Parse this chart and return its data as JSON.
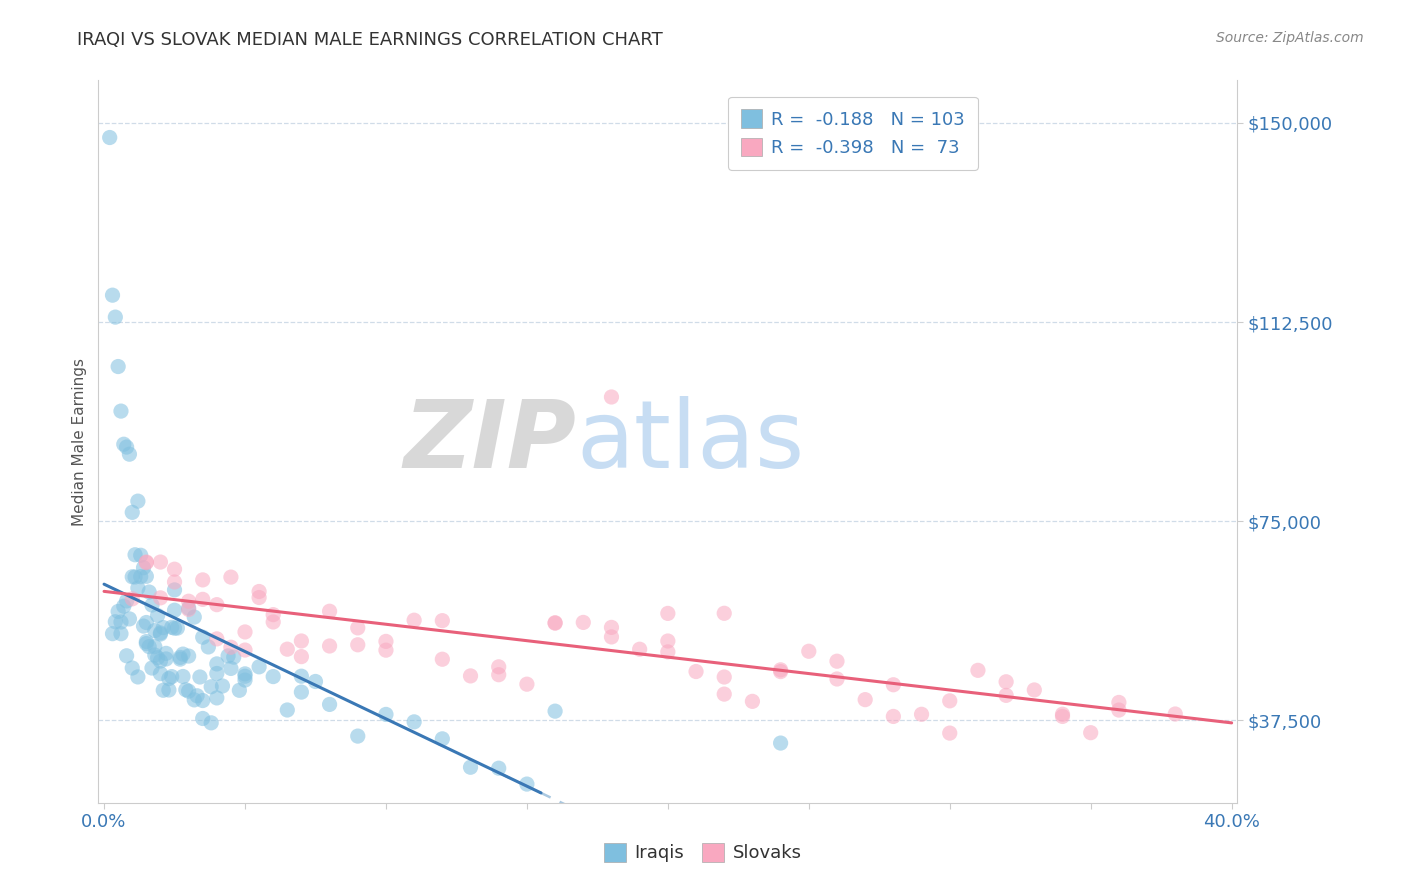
{
  "title": "IRAQI VS SLOVAK MEDIAN MALE EARNINGS CORRELATION CHART",
  "source_text": "Source: ZipAtlas.com",
  "ylabel": "Median Male Earnings",
  "xlim": [
    -0.002,
    0.402
  ],
  "ylim": [
    22000,
    158000
  ],
  "yticks": [
    37500,
    75000,
    112500,
    150000
  ],
  "ytick_labels": [
    "$37,500",
    "$75,000",
    "$112,500",
    "$150,000"
  ],
  "xtick_vals": [
    0.0,
    0.05,
    0.1,
    0.15,
    0.2,
    0.25,
    0.3,
    0.35,
    0.4
  ],
  "xtick_labels": [
    "0.0%",
    "",
    "",
    "",
    "",
    "",
    "",
    "",
    "40.0%"
  ],
  "iraqi_R": -0.188,
  "iraqi_N": 103,
  "slovak_R": -0.398,
  "slovak_N": 73,
  "iraqi_color": "#7fbfdf",
  "slovak_color": "#f9a8c0",
  "iraqi_line_color": "#3a78b5",
  "slovak_line_color": "#e8607a",
  "dashed_line_color": "#aac8e0",
  "title_color": "#333333",
  "axis_label_color": "#3a78b5",
  "tick_label_color": "#3a78b5",
  "grid_color": "#d0dce8",
  "background_color": "#ffffff",
  "watermark_zip": "ZIP",
  "watermark_atlas": "atlas",
  "iraqi_x": [
    0.002,
    0.003,
    0.004,
    0.005,
    0.006,
    0.007,
    0.008,
    0.009,
    0.01,
    0.011,
    0.012,
    0.013,
    0.014,
    0.015,
    0.016,
    0.017,
    0.018,
    0.019,
    0.02,
    0.021,
    0.022,
    0.023,
    0.024,
    0.025,
    0.026,
    0.027,
    0.028,
    0.029,
    0.03,
    0.032,
    0.033,
    0.034,
    0.035,
    0.037,
    0.038,
    0.04,
    0.042,
    0.044,
    0.046,
    0.048,
    0.05,
    0.003,
    0.004,
    0.005,
    0.006,
    0.007,
    0.008,
    0.009,
    0.01,
    0.011,
    0.012,
    0.013,
    0.014,
    0.015,
    0.016,
    0.017,
    0.018,
    0.019,
    0.02,
    0.021,
    0.022,
    0.023,
    0.024,
    0.025,
    0.027,
    0.028,
    0.03,
    0.032,
    0.035,
    0.038,
    0.04,
    0.045,
    0.05,
    0.055,
    0.06,
    0.065,
    0.07,
    0.075,
    0.08,
    0.09,
    0.1,
    0.11,
    0.12,
    0.13,
    0.14,
    0.15,
    0.16,
    0.24,
    0.006,
    0.008,
    0.01,
    0.012,
    0.015,
    0.018,
    0.02,
    0.025,
    0.03,
    0.035,
    0.04,
    0.05,
    0.07,
    0.015,
    0.02
  ],
  "iraqi_y": [
    143000,
    55000,
    56000,
    57000,
    58000,
    59000,
    60000,
    61000,
    62000,
    63000,
    64000,
    65000,
    54000,
    53000,
    52000,
    51000,
    50000,
    49000,
    48000,
    47000,
    46000,
    45000,
    56000,
    57000,
    55000,
    53000,
    51000,
    49000,
    47000,
    58000,
    44000,
    43000,
    42000,
    50000,
    49000,
    48000,
    47000,
    46000,
    45000,
    44000,
    43000,
    118000,
    112000,
    106000,
    100000,
    94000,
    88000,
    82000,
    76000,
    70000,
    74000,
    68000,
    66000,
    64000,
    62000,
    60000,
    58000,
    56000,
    54000,
    52000,
    50000,
    48000,
    46000,
    54000,
    50000,
    48000,
    46000,
    44000,
    42000,
    40000,
    38000,
    48000,
    46000,
    44000,
    42000,
    40000,
    45000,
    43000,
    41000,
    39000,
    37000,
    35000,
    33000,
    31000,
    29000,
    27000,
    40000,
    30000,
    50000,
    48000,
    46000,
    44000,
    52000,
    50000,
    48000,
    55000,
    53000,
    51000,
    49000,
    47000,
    45000,
    55000,
    53000
  ],
  "slovak_x": [
    0.01,
    0.015,
    0.02,
    0.025,
    0.03,
    0.035,
    0.04,
    0.045,
    0.05,
    0.055,
    0.06,
    0.065,
    0.07,
    0.08,
    0.09,
    0.1,
    0.11,
    0.12,
    0.13,
    0.14,
    0.15,
    0.16,
    0.17,
    0.18,
    0.19,
    0.2,
    0.21,
    0.22,
    0.23,
    0.24,
    0.25,
    0.26,
    0.27,
    0.28,
    0.29,
    0.3,
    0.31,
    0.32,
    0.33,
    0.34,
    0.35,
    0.36,
    0.38,
    0.02,
    0.03,
    0.04,
    0.05,
    0.06,
    0.07,
    0.08,
    0.09,
    0.1,
    0.12,
    0.14,
    0.16,
    0.18,
    0.2,
    0.22,
    0.24,
    0.26,
    0.28,
    0.3,
    0.32,
    0.34,
    0.36,
    0.015,
    0.025,
    0.035,
    0.045,
    0.055,
    0.18,
    0.2,
    0.22
  ],
  "slovak_y": [
    64000,
    66000,
    62000,
    60000,
    58000,
    56000,
    54000,
    52000,
    50000,
    58000,
    56000,
    54000,
    52000,
    58000,
    56000,
    54000,
    52000,
    50000,
    48000,
    46000,
    44000,
    56000,
    54000,
    52000,
    50000,
    48000,
    46000,
    44000,
    42000,
    48000,
    50000,
    48000,
    46000,
    44000,
    42000,
    40000,
    46000,
    44000,
    42000,
    40000,
    38000,
    44000,
    40000,
    68000,
    62000,
    60000,
    58000,
    56000,
    54000,
    52000,
    50000,
    48000,
    52000,
    50000,
    54000,
    52000,
    50000,
    48000,
    46000,
    44000,
    42000,
    40000,
    42000,
    40000,
    38000,
    70000,
    68000,
    66000,
    64000,
    62000,
    96000,
    60000,
    58000
  ]
}
